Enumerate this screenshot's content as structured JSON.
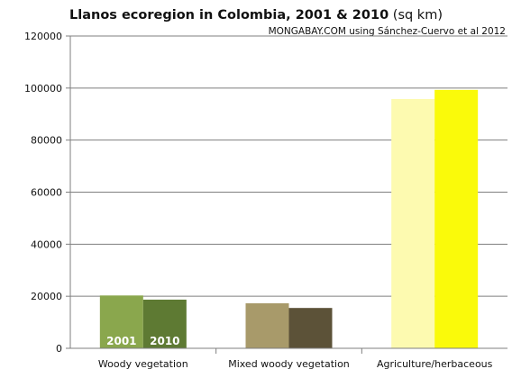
{
  "chart_data": {
    "type": "bar",
    "title_main": "Llanos ecoregion in Colombia, 2001 & 2010",
    "title_unit": " (sq km)",
    "subtitle": "MONGABAY.COM using Sánchez-Cuervo et al 2012",
    "xlabel": "",
    "ylabel": "",
    "ylim": [
      0,
      120000
    ],
    "yticks": [
      0,
      20000,
      40000,
      60000,
      80000,
      100000,
      120000
    ],
    "grid": true,
    "categories": [
      "Woody vegetation",
      "Mixed woody vegetation",
      "Agriculture/herbaceous"
    ],
    "series": [
      {
        "name": "2001",
        "values": [
          20300,
          17300,
          95800
        ]
      },
      {
        "name": "2010",
        "values": [
          18700,
          15500,
          99300
        ]
      }
    ],
    "bar_colors": [
      [
        "#8aa74d",
        "#5e7a33"
      ],
      [
        "#a89a6a",
        "#5c5238"
      ],
      [
        "#fdfab0",
        "#fafa0a"
      ]
    ],
    "bar_label_colors": [
      "#ffffff",
      "#ffffff"
    ]
  }
}
